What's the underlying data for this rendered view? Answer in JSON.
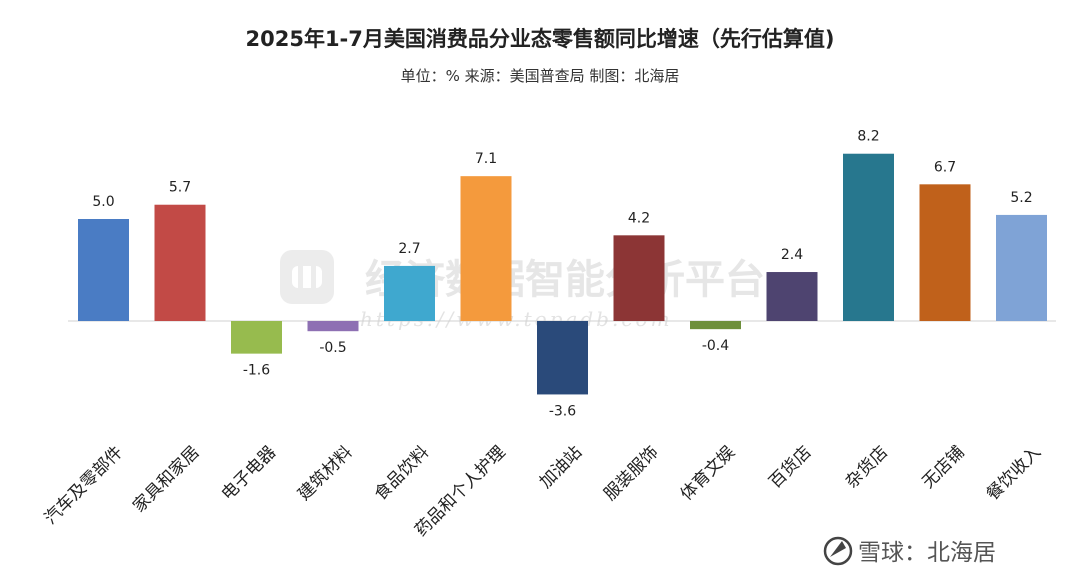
{
  "chart_data": {
    "type": "bar",
    "title": "2025年1-7月美国消费品分业态零售额同比增速（先行估算值)",
    "subtitle": "单位：% 来源：美国普查局 制图：北海居",
    "categories": [
      "汽车及零部件",
      "家具和家居",
      "电子电器",
      "建筑材料",
      "食品饮料",
      "药品和个人护理",
      "加油站",
      "服装服饰",
      "体育文娱",
      "百货店",
      "杂货店",
      "无店铺",
      "餐饮收入"
    ],
    "values": [
      5.0,
      5.7,
      -1.6,
      -0.5,
      2.7,
      7.1,
      -3.6,
      4.2,
      -0.4,
      2.4,
      8.2,
      6.7,
      5.2
    ],
    "value_labels": [
      "5.0",
      "5.7",
      "-1.6",
      "-0.5",
      "2.7",
      "7.1",
      "-3.6",
      "4.2",
      "-0.4",
      "2.4",
      "8.2",
      "6.7",
      "5.2"
    ],
    "colors": [
      "#4a7cc4",
      "#c24a46",
      "#97bb4e",
      "#8e70b3",
      "#3fa8cf",
      "#f49a3d",
      "#2a4a7a",
      "#8c3535",
      "#6e8f3c",
      "#4e4470",
      "#27778e",
      "#c0611b",
      "#7fa3d6"
    ],
    "ylim": [
      -4,
      9
    ],
    "grid": false,
    "legend": "none",
    "xlabel": "",
    "ylabel": ""
  },
  "watermark": {
    "text": "经济数据智能分析平台",
    "url": "https://www.topadb.com"
  },
  "branding": {
    "text": "雪球：北海居"
  }
}
